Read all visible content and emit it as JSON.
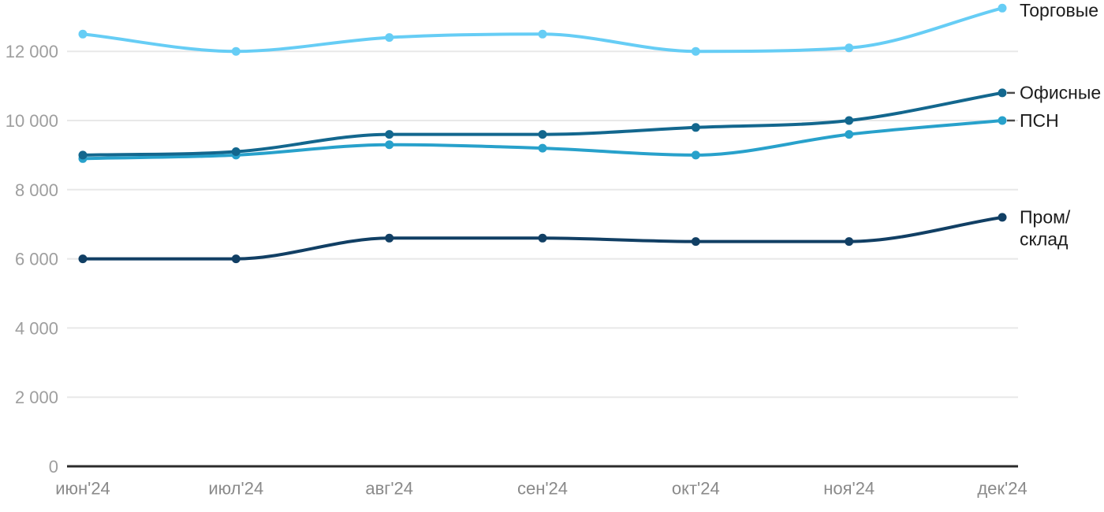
{
  "chart_data": {
    "type": "line",
    "categories": [
      "июн'24",
      "июл'24",
      "авг'24",
      "сен'24",
      "окт'24",
      "ноя'24",
      "дек'24"
    ],
    "series": [
      {
        "id": "torgovye",
        "name": "Торговые",
        "values": [
          12500,
          12000,
          12400,
          12500,
          12000,
          12100,
          13250
        ],
        "color": "#66CDF5",
        "label_lines": [
          "Торговые"
        ],
        "leader_dash": false
      },
      {
        "id": "ofisnye",
        "name": "Офисные",
        "values": [
          9000,
          9100,
          9600,
          9600,
          9800,
          10000,
          10800
        ],
        "color": "#13678E",
        "label_lines": [
          "Офисные"
        ],
        "leader_dash": true
      },
      {
        "id": "psn",
        "name": "ПСН",
        "values": [
          8900,
          9000,
          9300,
          9200,
          9000,
          9600,
          10000
        ],
        "color": "#28A1CB",
        "label_lines": [
          "ПСН"
        ],
        "leader_dash": true
      },
      {
        "id": "prom-sklad",
        "name": "Пром/склад",
        "values": [
          6000,
          6000,
          6600,
          6600,
          6500,
          6500,
          7200
        ],
        "color": "#113F64",
        "label_lines": [
          "Пром/",
          "склад"
        ],
        "leader_dash": false
      }
    ],
    "y_axis": {
      "ticks": [
        0,
        2000,
        4000,
        6000,
        8000,
        10000,
        12000
      ],
      "tick_labels": [
        "0",
        "2 000",
        "4 000",
        "6 000",
        "8 000",
        "10 000",
        "12 000"
      ],
      "range": [
        0,
        13450
      ]
    },
    "grid": "horizontal",
    "legend_position": "direct-right"
  },
  "colors": {
    "background": "#ffffff",
    "grid": "#e8e8e8",
    "axis": "#2b2b2b",
    "y_tick_text": "#9e9e9e",
    "x_tick_text": "#8a8a8a",
    "series_label_text": "#1c1c1c",
    "leader_dash": "#4a4a4a"
  }
}
